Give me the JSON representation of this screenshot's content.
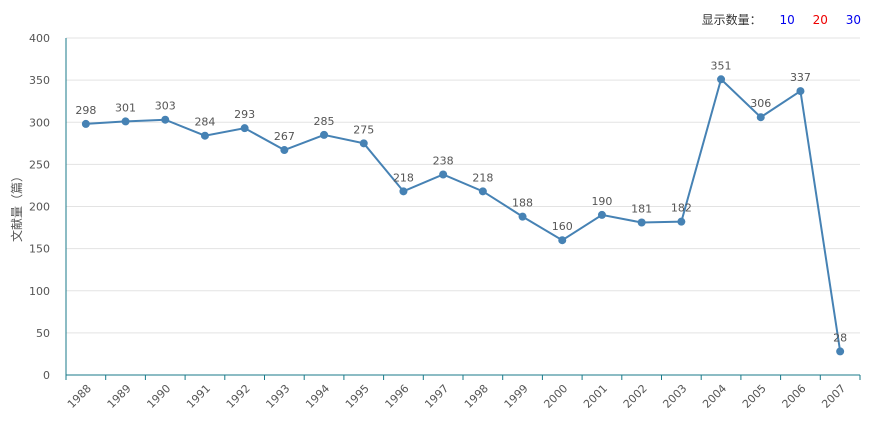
{
  "controls": {
    "label": "显示数量：",
    "options": [
      {
        "label": "10",
        "color": "#0000ee"
      },
      {
        "label": "20",
        "color": "#ee0000"
      },
      {
        "label": "30",
        "color": "#0000ee"
      }
    ]
  },
  "chart_data": {
    "type": "line",
    "title": "",
    "xlabel": "",
    "ylabel": "文献量（篇）",
    "ylim": [
      0,
      400
    ],
    "yticks": [
      "0",
      "50",
      "100",
      "150",
      "200",
      "250",
      "300",
      "350",
      "400"
    ],
    "categories": [
      "1988",
      "1989",
      "1990",
      "1991",
      "1992",
      "1993",
      "1994",
      "1995",
      "1996",
      "1997",
      "1998",
      "1999",
      "2000",
      "2001",
      "2002",
      "2003",
      "2004",
      "2005",
      "2006",
      "2007"
    ],
    "series": [
      {
        "values": [
          298,
          301,
          303,
          284,
          293,
          267,
          285,
          275,
          218,
          238,
          218,
          188,
          160,
          190,
          181,
          182,
          351,
          306,
          337,
          28
        ],
        "color": "#4682b4"
      }
    ],
    "grid": true,
    "legend": "none"
  }
}
